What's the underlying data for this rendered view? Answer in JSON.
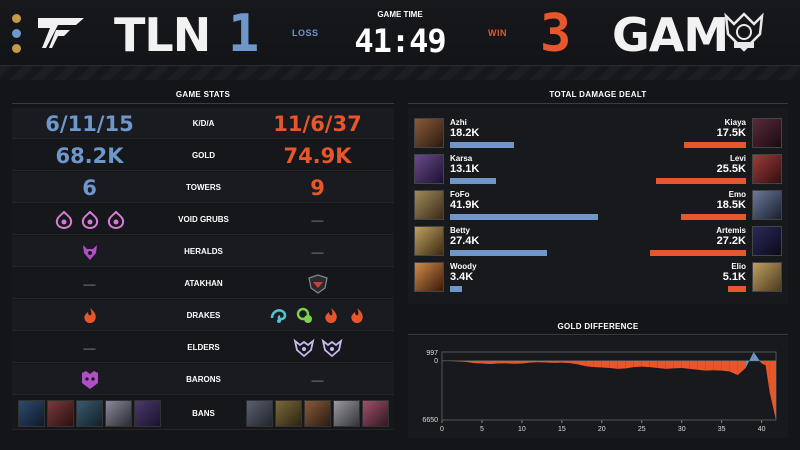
{
  "header": {
    "left_team": "TLN",
    "left_score": "1",
    "left_result": "LOSS",
    "right_team": "GAM",
    "right_score": "3",
    "right_result": "WIN",
    "game_time_label": "GAME TIME",
    "game_time": "41:49"
  },
  "colors": {
    "blue": "#6f97c9",
    "orange": "#e6572b",
    "background": "#141519"
  },
  "game_stats": {
    "title": "GAME STATS",
    "rows": [
      {
        "label": "K/D/A",
        "left": "6/11/15",
        "right": "11/6/37"
      },
      {
        "label": "GOLD",
        "left": "68.2K",
        "right": "74.9K"
      },
      {
        "label": "TOWERS",
        "left": "6",
        "right": "9"
      },
      {
        "label": "VOID GRUBS",
        "left_icons": [
          "void-grub-icon",
          "void-grub-icon",
          "void-grub-icon"
        ],
        "right": "—"
      },
      {
        "label": "HERALDS",
        "left_icons": [
          "herald-icon"
        ],
        "right": "—"
      },
      {
        "label": "ATAKHAN",
        "left": "—",
        "right_icons": [
          "atakhan-icon"
        ]
      },
      {
        "label": "DRAKES",
        "left_icons": [
          "infernal-drake-icon"
        ],
        "right_icons": [
          "ocean-drake-icon",
          "chemtech-drake-icon",
          "infernal-drake-icon",
          "infernal-drake-icon"
        ]
      },
      {
        "label": "ELDERS",
        "left": "—",
        "right_icons": [
          "elder-drake-icon",
          "elder-drake-icon"
        ]
      },
      {
        "label": "BARONS",
        "left_icons": [
          "baron-icon"
        ],
        "right": "—"
      },
      {
        "label": "BANS",
        "left_bans": [
          "ban-champion-icon",
          "ban-champion-icon",
          "ban-champion-icon",
          "ban-champion-icon",
          "ban-champion-icon"
        ],
        "right_bans": [
          "ban-champion-icon",
          "ban-champion-icon",
          "ban-champion-icon",
          "ban-champion-icon",
          "ban-champion-icon"
        ]
      }
    ]
  },
  "damage": {
    "title": "TOTAL DAMAGE DEALT",
    "max": 41.9,
    "rows": [
      {
        "left_name": "Azhi",
        "left_value": "18.2K",
        "left_num": 18.2,
        "right_name": "Kiaya",
        "right_value": "17.5K",
        "right_num": 17.5
      },
      {
        "left_name": "Karsa",
        "left_value": "13.1K",
        "left_num": 13.1,
        "right_name": "Levi",
        "right_value": "25.5K",
        "right_num": 25.5
      },
      {
        "left_name": "FoFo",
        "left_value": "41.9K",
        "left_num": 41.9,
        "right_name": "Emo",
        "right_value": "18.5K",
        "right_num": 18.5
      },
      {
        "left_name": "Betty",
        "left_value": "27.4K",
        "left_num": 27.4,
        "right_name": "Artemis",
        "right_value": "27.2K",
        "right_num": 27.2
      },
      {
        "left_name": "Woody",
        "left_value": "3.4K",
        "left_num": 3.4,
        "right_name": "Elio",
        "right_value": "5.1K",
        "right_num": 5.1
      }
    ]
  },
  "gold_diff": {
    "title": "GOLD DIFFERENCE",
    "y_top_label": "997",
    "y_zero_label": "0",
    "y_bottom_label": "6650",
    "x_ticks": [
      "0",
      "5",
      "10",
      "15",
      "20",
      "25",
      "30",
      "35",
      "40"
    ]
  },
  "chart_data": {
    "type": "area",
    "title": "GOLD DIFFERENCE",
    "xlabel": "",
    "ylabel": "",
    "xlim": [
      0,
      41.8
    ],
    "ylim": [
      -6650,
      997
    ],
    "x": [
      0,
      1,
      2,
      3,
      4,
      5,
      6,
      7,
      8,
      9,
      10,
      11,
      12,
      13,
      14,
      15,
      16,
      17,
      18,
      19,
      20,
      21,
      22,
      23,
      24,
      25,
      26,
      27,
      28,
      29,
      30,
      31,
      32,
      33,
      34,
      35,
      36,
      37,
      38,
      39,
      40,
      40.5,
      41,
      41.8
    ],
    "series": [
      {
        "values": [
          0,
          -20,
          -60,
          -120,
          -250,
          -300,
          -350,
          -300,
          -280,
          -320,
          -300,
          -200,
          -150,
          -180,
          -220,
          -200,
          -250,
          -400,
          -600,
          -700,
          -750,
          -800,
          -900,
          -850,
          -700,
          -650,
          -700,
          -800,
          -900,
          -850,
          -800,
          -900,
          -1000,
          -1100,
          -1050,
          -1100,
          -1200,
          -1600,
          -800,
          997,
          -300,
          -500,
          -3500,
          -6650
        ]
      }
    ]
  }
}
